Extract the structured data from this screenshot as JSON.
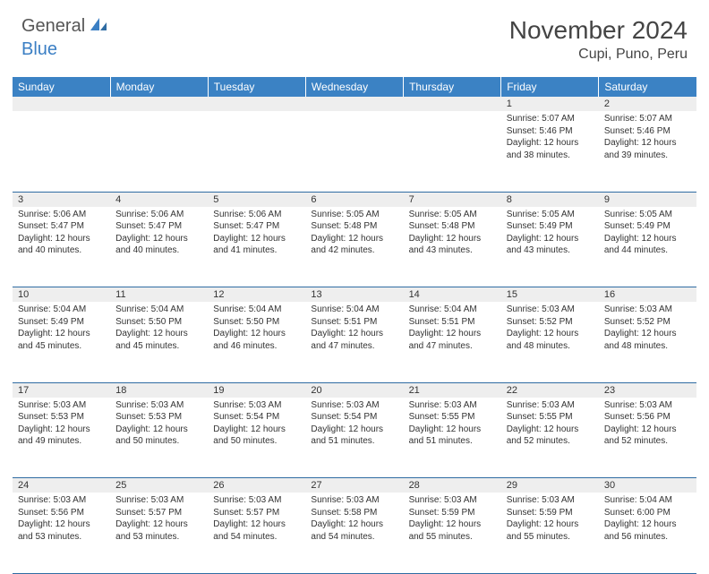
{
  "logo": {
    "part1": "General",
    "part2": "Blue"
  },
  "title": "November 2024",
  "location": "Cupi, Puno, Peru",
  "colors": {
    "header_bg": "#3b82c4",
    "header_text": "#ffffff",
    "daynum_bg": "#eeeeee",
    "row_border": "#2f6ca3",
    "logo_gray": "#555555",
    "logo_blue": "#3b7fc4"
  },
  "day_headers": [
    "Sunday",
    "Monday",
    "Tuesday",
    "Wednesday",
    "Thursday",
    "Friday",
    "Saturday"
  ],
  "weeks": [
    [
      null,
      null,
      null,
      null,
      null,
      {
        "n": "1",
        "sr": "5:07 AM",
        "ss": "5:46 PM",
        "dl": "12 hours and 38 minutes."
      },
      {
        "n": "2",
        "sr": "5:07 AM",
        "ss": "5:46 PM",
        "dl": "12 hours and 39 minutes."
      }
    ],
    [
      {
        "n": "3",
        "sr": "5:06 AM",
        "ss": "5:47 PM",
        "dl": "12 hours and 40 minutes."
      },
      {
        "n": "4",
        "sr": "5:06 AM",
        "ss": "5:47 PM",
        "dl": "12 hours and 40 minutes."
      },
      {
        "n": "5",
        "sr": "5:06 AM",
        "ss": "5:47 PM",
        "dl": "12 hours and 41 minutes."
      },
      {
        "n": "6",
        "sr": "5:05 AM",
        "ss": "5:48 PM",
        "dl": "12 hours and 42 minutes."
      },
      {
        "n": "7",
        "sr": "5:05 AM",
        "ss": "5:48 PM",
        "dl": "12 hours and 43 minutes."
      },
      {
        "n": "8",
        "sr": "5:05 AM",
        "ss": "5:49 PM",
        "dl": "12 hours and 43 minutes."
      },
      {
        "n": "9",
        "sr": "5:05 AM",
        "ss": "5:49 PM",
        "dl": "12 hours and 44 minutes."
      }
    ],
    [
      {
        "n": "10",
        "sr": "5:04 AM",
        "ss": "5:49 PM",
        "dl": "12 hours and 45 minutes."
      },
      {
        "n": "11",
        "sr": "5:04 AM",
        "ss": "5:50 PM",
        "dl": "12 hours and 45 minutes."
      },
      {
        "n": "12",
        "sr": "5:04 AM",
        "ss": "5:50 PM",
        "dl": "12 hours and 46 minutes."
      },
      {
        "n": "13",
        "sr": "5:04 AM",
        "ss": "5:51 PM",
        "dl": "12 hours and 47 minutes."
      },
      {
        "n": "14",
        "sr": "5:04 AM",
        "ss": "5:51 PM",
        "dl": "12 hours and 47 minutes."
      },
      {
        "n": "15",
        "sr": "5:03 AM",
        "ss": "5:52 PM",
        "dl": "12 hours and 48 minutes."
      },
      {
        "n": "16",
        "sr": "5:03 AM",
        "ss": "5:52 PM",
        "dl": "12 hours and 48 minutes."
      }
    ],
    [
      {
        "n": "17",
        "sr": "5:03 AM",
        "ss": "5:53 PM",
        "dl": "12 hours and 49 minutes."
      },
      {
        "n": "18",
        "sr": "5:03 AM",
        "ss": "5:53 PM",
        "dl": "12 hours and 50 minutes."
      },
      {
        "n": "19",
        "sr": "5:03 AM",
        "ss": "5:54 PM",
        "dl": "12 hours and 50 minutes."
      },
      {
        "n": "20",
        "sr": "5:03 AM",
        "ss": "5:54 PM",
        "dl": "12 hours and 51 minutes."
      },
      {
        "n": "21",
        "sr": "5:03 AM",
        "ss": "5:55 PM",
        "dl": "12 hours and 51 minutes."
      },
      {
        "n": "22",
        "sr": "5:03 AM",
        "ss": "5:55 PM",
        "dl": "12 hours and 52 minutes."
      },
      {
        "n": "23",
        "sr": "5:03 AM",
        "ss": "5:56 PM",
        "dl": "12 hours and 52 minutes."
      }
    ],
    [
      {
        "n": "24",
        "sr": "5:03 AM",
        "ss": "5:56 PM",
        "dl": "12 hours and 53 minutes."
      },
      {
        "n": "25",
        "sr": "5:03 AM",
        "ss": "5:57 PM",
        "dl": "12 hours and 53 minutes."
      },
      {
        "n": "26",
        "sr": "5:03 AM",
        "ss": "5:57 PM",
        "dl": "12 hours and 54 minutes."
      },
      {
        "n": "27",
        "sr": "5:03 AM",
        "ss": "5:58 PM",
        "dl": "12 hours and 54 minutes."
      },
      {
        "n": "28",
        "sr": "5:03 AM",
        "ss": "5:59 PM",
        "dl": "12 hours and 55 minutes."
      },
      {
        "n": "29",
        "sr": "5:03 AM",
        "ss": "5:59 PM",
        "dl": "12 hours and 55 minutes."
      },
      {
        "n": "30",
        "sr": "5:04 AM",
        "ss": "6:00 PM",
        "dl": "12 hours and 56 minutes."
      }
    ]
  ],
  "labels": {
    "sunrise": "Sunrise: ",
    "sunset": "Sunset: ",
    "daylight": "Daylight: "
  }
}
